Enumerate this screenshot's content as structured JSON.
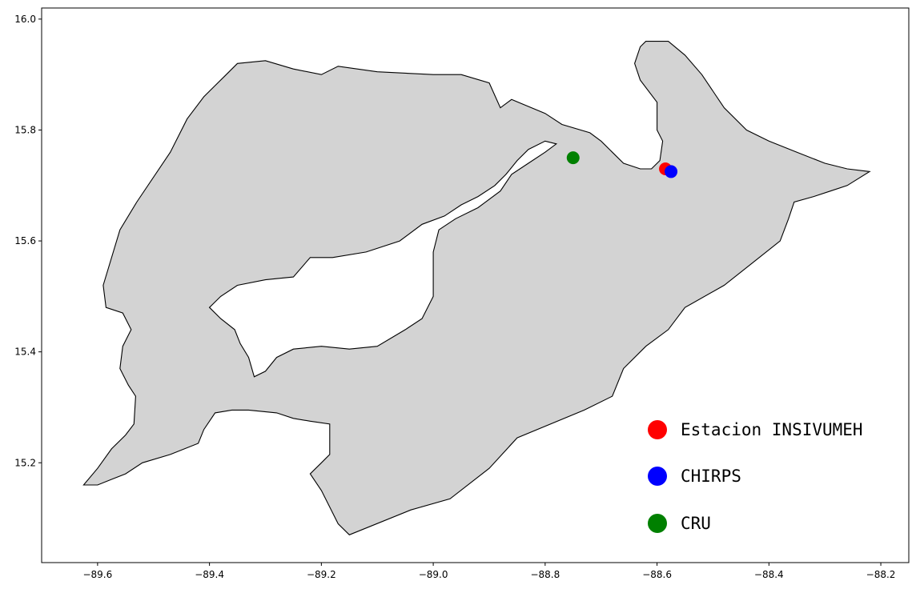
{
  "chart_data": {
    "type": "scatter",
    "title": "",
    "xlabel": "",
    "ylabel": "",
    "xlim": [
      -89.7,
      -88.15
    ],
    "ylim": [
      15.02,
      16.02
    ],
    "x_ticks": [
      {
        "value": -89.6,
        "label": "−89.6"
      },
      {
        "value": -89.4,
        "label": "−89.4"
      },
      {
        "value": -89.2,
        "label": "−89.2"
      },
      {
        "value": -89.0,
        "label": "−89.0"
      },
      {
        "value": -88.8,
        "label": "−88.8"
      },
      {
        "value": -88.6,
        "label": "−88.6"
      },
      {
        "value": -88.4,
        "label": "−88.4"
      },
      {
        "value": -88.2,
        "label": "−88.2"
      }
    ],
    "y_ticks": [
      {
        "value": 15.2,
        "label": "15.2"
      },
      {
        "value": 15.4,
        "label": "15.4"
      },
      {
        "value": 15.6,
        "label": "15.6"
      },
      {
        "value": 15.8,
        "label": "15.8"
      },
      {
        "value": 16.0,
        "label": "16.0"
      }
    ],
    "grid": false,
    "legend": "bottom-right",
    "region": {
      "fill": "#d3d3d3",
      "outline": [
        [
          -89.625,
          15.16
        ],
        [
          -89.6,
          15.19
        ],
        [
          -89.575,
          15.225
        ],
        [
          -89.55,
          15.25
        ],
        [
          -89.535,
          15.27
        ],
        [
          -89.532,
          15.32
        ],
        [
          -89.545,
          15.34
        ],
        [
          -89.56,
          15.37
        ],
        [
          -89.555,
          15.41
        ],
        [
          -89.54,
          15.44
        ],
        [
          -89.555,
          15.47
        ],
        [
          -89.585,
          15.48
        ],
        [
          -89.59,
          15.52
        ],
        [
          -89.56,
          15.62
        ],
        [
          -89.53,
          15.67
        ],
        [
          -89.47,
          15.76
        ],
        [
          -89.44,
          15.82
        ],
        [
          -89.41,
          15.86
        ],
        [
          -89.39,
          15.88
        ],
        [
          -89.37,
          15.9
        ],
        [
          -89.35,
          15.92
        ],
        [
          -89.3,
          15.925
        ],
        [
          -89.25,
          15.91
        ],
        [
          -89.2,
          15.9
        ],
        [
          -89.17,
          15.915
        ],
        [
          -89.1,
          15.905
        ],
        [
          -89.0,
          15.9
        ],
        [
          -88.95,
          15.9
        ],
        [
          -88.9,
          15.885
        ],
        [
          -88.88,
          15.84
        ],
        [
          -88.86,
          15.855
        ],
        [
          -88.8,
          15.83
        ],
        [
          -88.77,
          15.81
        ],
        [
          -88.72,
          15.795
        ],
        [
          -88.7,
          15.78
        ],
        [
          -88.68,
          15.76
        ],
        [
          -88.66,
          15.74
        ],
        [
          -88.63,
          15.73
        ],
        [
          -88.61,
          15.73
        ],
        [
          -88.595,
          15.745
        ],
        [
          -88.59,
          15.78
        ],
        [
          -88.6,
          15.8
        ],
        [
          -88.6,
          15.85
        ],
        [
          -88.63,
          15.89
        ],
        [
          -88.64,
          15.92
        ],
        [
          -88.63,
          15.95
        ],
        [
          -88.62,
          15.96
        ],
        [
          -88.58,
          15.96
        ],
        [
          -88.55,
          15.935
        ],
        [
          -88.52,
          15.9
        ],
        [
          -88.5,
          15.87
        ],
        [
          -88.48,
          15.84
        ],
        [
          -88.44,
          15.8
        ],
        [
          -88.4,
          15.78
        ],
        [
          -88.35,
          15.76
        ],
        [
          -88.3,
          15.74
        ],
        [
          -88.26,
          15.73
        ],
        [
          -88.22,
          15.725
        ],
        [
          -88.26,
          15.7
        ],
        [
          -88.29,
          15.69
        ],
        [
          -88.32,
          15.68
        ],
        [
          -88.355,
          15.67
        ],
        [
          -88.365,
          15.64
        ],
        [
          -88.38,
          15.6
        ],
        [
          -88.43,
          15.56
        ],
        [
          -88.48,
          15.52
        ],
        [
          -88.55,
          15.48
        ],
        [
          -88.58,
          15.44
        ],
        [
          -88.62,
          15.41
        ],
        [
          -88.66,
          15.37
        ],
        [
          -88.68,
          15.32
        ],
        [
          -88.73,
          15.295
        ],
        [
          -88.85,
          15.245
        ],
        [
          -88.9,
          15.19
        ],
        [
          -88.97,
          15.135
        ],
        [
          -89.04,
          15.115
        ],
        [
          -89.15,
          15.07
        ],
        [
          -89.17,
          15.09
        ],
        [
          -89.2,
          15.15
        ],
        [
          -89.22,
          15.18
        ],
        [
          -89.2,
          15.2
        ],
        [
          -89.185,
          15.215
        ],
        [
          -89.185,
          15.27
        ],
        [
          -89.22,
          15.275
        ],
        [
          -89.25,
          15.28
        ],
        [
          -89.28,
          15.29
        ],
        [
          -89.33,
          15.295
        ],
        [
          -89.36,
          15.295
        ],
        [
          -89.39,
          15.29
        ],
        [
          -89.41,
          15.26
        ],
        [
          -89.42,
          15.235
        ],
        [
          -89.47,
          15.215
        ],
        [
          -89.52,
          15.2
        ],
        [
          -89.55,
          15.18
        ],
        [
          -89.575,
          15.17
        ],
        [
          -89.6,
          15.16
        ],
        [
          -89.625,
          15.16
        ]
      ],
      "hole": [
        [
          -89.4,
          15.48
        ],
        [
          -89.38,
          15.5
        ],
        [
          -89.35,
          15.52
        ],
        [
          -89.3,
          15.53
        ],
        [
          -89.25,
          15.535
        ],
        [
          -89.22,
          15.57
        ],
        [
          -89.18,
          15.57
        ],
        [
          -89.12,
          15.58
        ],
        [
          -89.06,
          15.6
        ],
        [
          -89.02,
          15.63
        ],
        [
          -88.98,
          15.645
        ],
        [
          -88.95,
          15.665
        ],
        [
          -88.92,
          15.68
        ],
        [
          -88.89,
          15.7
        ],
        [
          -88.87,
          15.72
        ],
        [
          -88.85,
          15.745
        ],
        [
          -88.83,
          15.765
        ],
        [
          -88.8,
          15.78
        ],
        [
          -88.78,
          15.775
        ],
        [
          -88.8,
          15.76
        ],
        [
          -88.83,
          15.74
        ],
        [
          -88.86,
          15.72
        ],
        [
          -88.88,
          15.69
        ],
        [
          -88.92,
          15.66
        ],
        [
          -88.96,
          15.64
        ],
        [
          -88.99,
          15.62
        ],
        [
          -89.0,
          15.58
        ],
        [
          -89.0,
          15.5
        ],
        [
          -89.02,
          15.46
        ],
        [
          -89.05,
          15.44
        ],
        [
          -89.1,
          15.41
        ],
        [
          -89.15,
          15.405
        ],
        [
          -89.2,
          15.41
        ],
        [
          -89.25,
          15.405
        ],
        [
          -89.28,
          15.39
        ],
        [
          -89.3,
          15.365
        ],
        [
          -89.32,
          15.355
        ],
        [
          -89.33,
          15.39
        ],
        [
          -89.345,
          15.415
        ],
        [
          -89.355,
          15.44
        ],
        [
          -89.38,
          15.46
        ],
        [
          -89.4,
          15.48
        ]
      ]
    },
    "series": [
      {
        "name": "Estacion INSIVUMEH",
        "color": "#ff0000",
        "points": [
          {
            "x": -88.585,
            "y": 15.73
          }
        ]
      },
      {
        "name": "CHIRPS",
        "color": "#0000ff",
        "points": [
          {
            "x": -88.575,
            "y": 15.725
          }
        ]
      },
      {
        "name": "CRU",
        "color": "#008000",
        "points": [
          {
            "x": -88.75,
            "y": 15.75
          }
        ]
      }
    ]
  }
}
